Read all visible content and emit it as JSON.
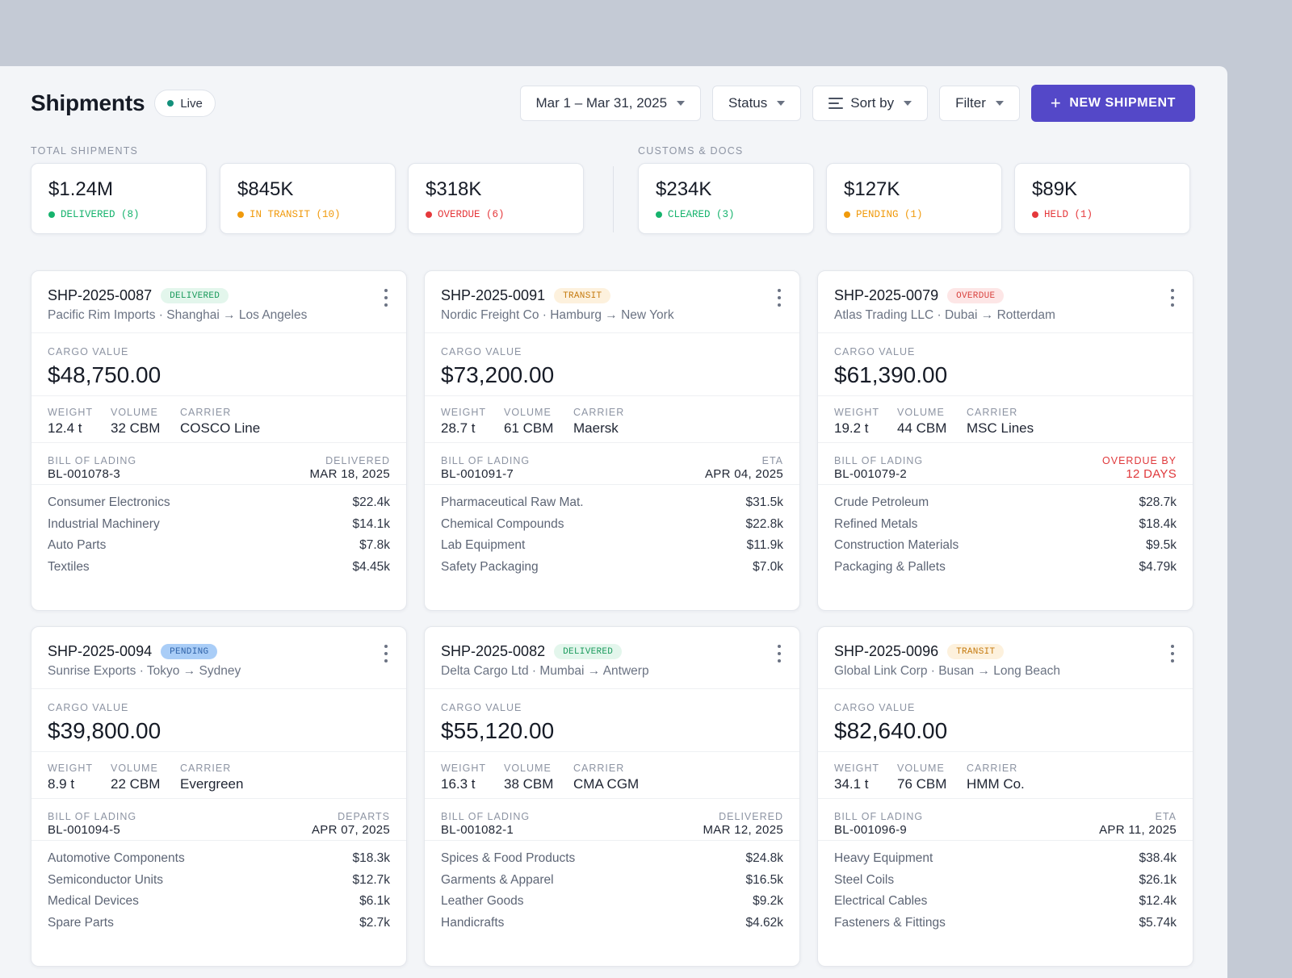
{
  "header": {
    "title": "Shipments",
    "live_label": "Live",
    "date_range": "Mar 1 – Mar 31, 2025",
    "status_label": "Status",
    "sort_label": "Sort by",
    "filter_label": "Filter",
    "new_button_label": "NEW SHIPMENT"
  },
  "summary": {
    "total": {
      "label": "TOTAL SHIPMENTS",
      "stats": [
        {
          "amount": "$1.24M",
          "label": "DELIVERED (8)",
          "color": "#16b36d"
        },
        {
          "amount": "$845K",
          "label": "IN TRANSIT (10)",
          "color": "#f09a0c"
        },
        {
          "amount": "$318K",
          "label": "OVERDUE (6)",
          "color": "#e5383b"
        }
      ]
    },
    "customs": {
      "label": "CUSTOMS & DOCS",
      "stats": [
        {
          "amount": "$234K",
          "label": "CLEARED (3)",
          "color": "#16b36d"
        },
        {
          "amount": "$127K",
          "label": "PENDING (1)",
          "color": "#f09a0c"
        },
        {
          "amount": "$89K",
          "label": "HELD (1)",
          "color": "#e5383b"
        }
      ]
    }
  },
  "labels": {
    "cargo_value": "CARGO VALUE",
    "weight": "WEIGHT",
    "volume": "VOLUME",
    "carrier": "CARRIER",
    "bill_of_lading": "BILL OF LADING"
  },
  "badge_styles": {
    "DELIVERED": {
      "bg": "#e3f6ec",
      "fg": "#1a9a5c"
    },
    "TRANSIT": {
      "bg": "#fdf1dd",
      "fg": "#c57a0f"
    },
    "OVERDUE": {
      "bg": "#fde6e6",
      "fg": "#d9433f"
    },
    "PENDING": {
      "bg": "#a9cdf7",
      "fg": "#2f62a8"
    }
  },
  "shipments": [
    {
      "id": "SHP-2025-0087",
      "badge": "DELIVERED",
      "subtitle": "Pacific Rim Imports · Shanghai → Los Angeles",
      "cargo_value": "$48,750.00",
      "weight": "12.4 t",
      "volume": "32 CBM",
      "carrier": "COSCO Line",
      "bol": "BL-001078-3",
      "date_label": "DELIVERED",
      "date_value": "MAR 18, 2025",
      "alert": false,
      "items": [
        {
          "name": "Consumer Electronics",
          "price": "$22.4k"
        },
        {
          "name": "Industrial Machinery",
          "price": "$14.1k"
        },
        {
          "name": "Auto Parts",
          "price": "$7.8k"
        },
        {
          "name": "Textiles",
          "price": "$4.45k"
        }
      ]
    },
    {
      "id": "SHP-2025-0091",
      "badge": "TRANSIT",
      "subtitle": "Nordic Freight Co · Hamburg → New York",
      "cargo_value": "$73,200.00",
      "weight": "28.7 t",
      "volume": "61 CBM",
      "carrier": "Maersk",
      "bol": "BL-001091-7",
      "date_label": "ETA",
      "date_value": "APR 04, 2025",
      "alert": false,
      "items": [
        {
          "name": "Pharmaceutical Raw Mat.",
          "price": "$31.5k"
        },
        {
          "name": "Chemical Compounds",
          "price": "$22.8k"
        },
        {
          "name": "Lab Equipment",
          "price": "$11.9k"
        },
        {
          "name": "Safety Packaging",
          "price": "$7.0k"
        }
      ]
    },
    {
      "id": "SHP-2025-0079",
      "badge": "OVERDUE",
      "subtitle": "Atlas Trading LLC · Dubai → Rotterdam",
      "cargo_value": "$61,390.00",
      "weight": "19.2 t",
      "volume": "44 CBM",
      "carrier": "MSC Lines",
      "bol": "BL-001079-2",
      "date_label": "OVERDUE BY",
      "date_value": "12 DAYS",
      "alert": true,
      "items": [
        {
          "name": "Crude Petroleum",
          "price": "$28.7k"
        },
        {
          "name": "Refined Metals",
          "price": "$18.4k"
        },
        {
          "name": "Construction Materials",
          "price": "$9.5k"
        },
        {
          "name": "Packaging & Pallets",
          "price": "$4.79k"
        }
      ]
    },
    {
      "id": "SHP-2025-0094",
      "badge": "PENDING",
      "subtitle": "Sunrise Exports · Tokyo → Sydney",
      "cargo_value": "$39,800.00",
      "weight": "8.9 t",
      "volume": "22 CBM",
      "carrier": "Evergreen",
      "bol": "BL-001094-5",
      "date_label": "DEPARTS",
      "date_value": "APR 07, 2025",
      "alert": false,
      "items": [
        {
          "name": "Automotive Components",
          "price": "$18.3k"
        },
        {
          "name": "Semiconductor Units",
          "price": "$12.7k"
        },
        {
          "name": "Medical Devices",
          "price": "$6.1k"
        },
        {
          "name": "Spare Parts",
          "price": "$2.7k"
        }
      ]
    },
    {
      "id": "SHP-2025-0082",
      "badge": "DELIVERED",
      "subtitle": "Delta Cargo Ltd · Mumbai → Antwerp",
      "cargo_value": "$55,120.00",
      "weight": "16.3 t",
      "volume": "38 CBM",
      "carrier": "CMA CGM",
      "bol": "BL-001082-1",
      "date_label": "DELIVERED",
      "date_value": "MAR 12, 2025",
      "alert": false,
      "items": [
        {
          "name": "Spices & Food Products",
          "price": "$24.8k"
        },
        {
          "name": "Garments & Apparel",
          "price": "$16.5k"
        },
        {
          "name": "Leather Goods",
          "price": "$9.2k"
        },
        {
          "name": "Handicrafts",
          "price": "$4.62k"
        }
      ]
    },
    {
      "id": "SHP-2025-0096",
      "badge": "TRANSIT",
      "subtitle": "Global Link Corp · Busan → Long Beach",
      "cargo_value": "$82,640.00",
      "weight": "34.1 t",
      "volume": "76 CBM",
      "carrier": "HMM Co.",
      "bol": "BL-001096-9",
      "date_label": "ETA",
      "date_value": "APR 11, 2025",
      "alert": false,
      "items": [
        {
          "name": "Heavy Equipment",
          "price": "$38.4k"
        },
        {
          "name": "Steel Coils",
          "price": "$26.1k"
        },
        {
          "name": "Electrical Cables",
          "price": "$12.4k"
        },
        {
          "name": "Fasteners & Fittings",
          "price": "$5.74k"
        }
      ]
    }
  ],
  "colors": {
    "accent": "#5448c8",
    "alert": "#e0393c"
  }
}
